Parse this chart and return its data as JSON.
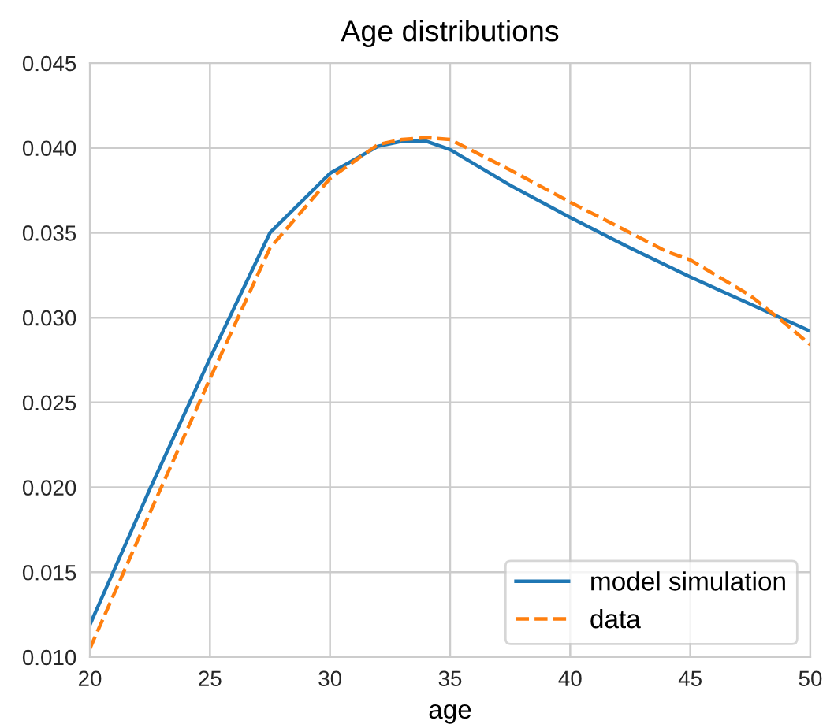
{
  "chart_data": {
    "type": "line",
    "title": "Age distributions",
    "xlabel": "age",
    "xlim": [
      20,
      50
    ],
    "xticks": [
      20,
      25,
      30,
      35,
      40,
      45,
      50
    ],
    "ylim": [
      0.01,
      0.045
    ],
    "yticks": [
      {
        "value": 0.01,
        "label": "0.010"
      },
      {
        "value": 0.015,
        "label": "0.015"
      },
      {
        "value": 0.02,
        "label": "0.020"
      },
      {
        "value": 0.025,
        "label": "0.025"
      },
      {
        "value": 0.03,
        "label": "0.030"
      },
      {
        "value": 0.035,
        "label": "0.035"
      },
      {
        "value": 0.04,
        "label": "0.040"
      },
      {
        "value": 0.045,
        "label": "0.045"
      }
    ],
    "grid": true,
    "legend": "bottom right",
    "series": [
      {
        "name": "model simulation",
        "color": "#1f77b4",
        "line_style": "solid",
        "x": [
          20,
          22.5,
          25,
          27.5,
          30,
          32,
          33,
          34,
          35,
          37.5,
          40,
          42.5,
          45,
          47.5,
          50
        ],
        "values": [
          0.0119,
          0.0199,
          0.0276,
          0.035,
          0.0385,
          0.0401,
          0.0404,
          0.0404,
          0.0399,
          0.0378,
          0.0359,
          0.0341,
          0.0324,
          0.0308,
          0.0292
        ]
      },
      {
        "name": "data",
        "color": "#ff7f0e",
        "line_style": "dashed",
        "x": [
          20,
          22.5,
          25,
          27.5,
          30,
          32,
          33,
          34,
          35,
          37.5,
          40,
          42.5,
          44,
          45,
          47.5,
          49,
          50
        ],
        "values": [
          0.0105,
          0.0185,
          0.0264,
          0.0341,
          0.0382,
          0.0402,
          0.0405,
          0.0406,
          0.0405,
          0.0387,
          0.0368,
          0.035,
          0.0339,
          0.0334,
          0.0313,
          0.0296,
          0.0284
        ]
      }
    ]
  }
}
